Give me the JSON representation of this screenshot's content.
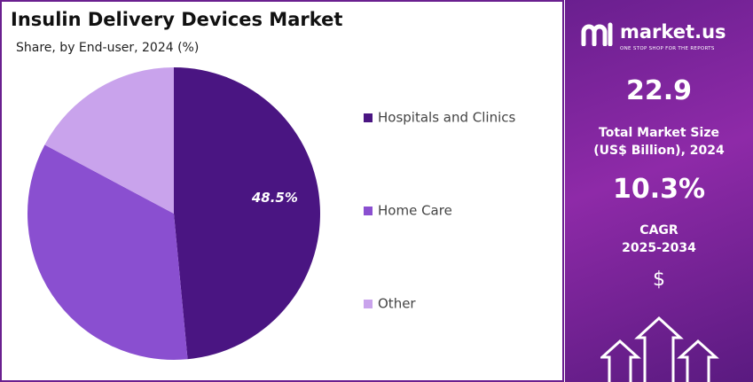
{
  "chart_data": {
    "type": "pie",
    "title": "Insulin Delivery Devices Market",
    "subtitle": "Share, by End-user, 2024 (%)",
    "categories": [
      "Hospitals and Clinics",
      "Home Care",
      "Other"
    ],
    "values": [
      48.5,
      34.3,
      17.2
    ],
    "value_labels": [
      "48.5%",
      null,
      null
    ],
    "colors": [
      "#4a1582",
      "#8a4fd0",
      "#c9a3ec"
    ]
  },
  "side_panel": {
    "brand": "market.us",
    "tagline": "ONE STOP SHOP FOR THE REPORTS",
    "market_size": "22.9",
    "market_size_label": [
      "Total Market Size",
      "(US$ Billion), 2024"
    ],
    "cagr": "10.3%",
    "cagr_label": [
      "CAGR",
      "2025-2034"
    ],
    "currency": "$"
  }
}
